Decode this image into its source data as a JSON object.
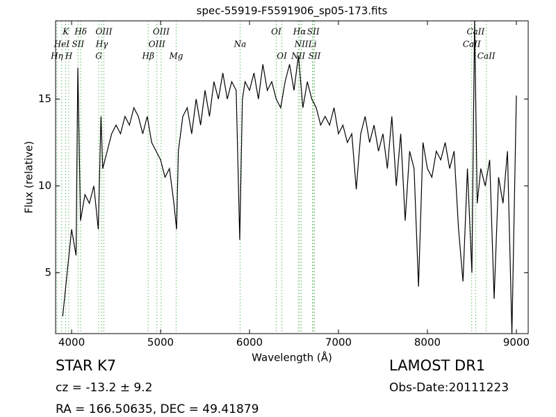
{
  "chart_data": {
    "type": "line",
    "title": "spec-55919-F5591906_sp05-173.fits",
    "x_label": "Wavelength (Å)",
    "y_label": "Flux (relative)",
    "xlim": [
      3820,
      9133
    ],
    "ylim": [
      1.5,
      19.5
    ],
    "xticks": [
      4000,
      5000,
      6000,
      7000,
      8000,
      9000
    ],
    "yticks": [
      5,
      10,
      15
    ],
    "series": [
      {
        "color": "#000000",
        "x": [
          3900,
          3950,
          4000,
          4050,
          4070,
          4100,
          4150,
          4200,
          4250,
          4300,
          4330,
          4350,
          4400,
          4450,
          4500,
          4550,
          4600,
          4650,
          4700,
          4750,
          4800,
          4850,
          4900,
          4950,
          5000,
          5050,
          5100,
          5150,
          5180,
          5200,
          5250,
          5300,
          5350,
          5400,
          5450,
          5500,
          5550,
          5600,
          5650,
          5700,
          5750,
          5800,
          5850,
          5890,
          5920,
          5950,
          6000,
          6050,
          6100,
          6150,
          6200,
          6250,
          6300,
          6350,
          6400,
          6450,
          6500,
          6550,
          6600,
          6650,
          6700,
          6750,
          6800,
          6850,
          6900,
          6950,
          7000,
          7050,
          7100,
          7150,
          7200,
          7250,
          7300,
          7350,
          7400,
          7450,
          7500,
          7550,
          7600,
          7650,
          7700,
          7750,
          7800,
          7850,
          7900,
          7950,
          8000,
          8050,
          8100,
          8150,
          8200,
          8250,
          8300,
          8350,
          8400,
          8450,
          8500,
          8530,
          8560,
          8600,
          8650,
          8700,
          8750,
          8800,
          8850,
          8900,
          8950,
          9000
        ],
        "values": [
          2.5,
          5,
          7.5,
          6,
          16.8,
          8,
          9.5,
          9,
          10,
          7.5,
          14,
          11,
          12,
          13,
          13.5,
          13,
          14,
          13.5,
          14.5,
          14,
          13,
          14,
          12.5,
          12,
          11.5,
          10.5,
          11,
          9,
          7.5,
          12,
          14,
          14.5,
          13,
          15,
          13.5,
          15.5,
          14,
          16,
          15,
          16.5,
          15,
          16,
          15.5,
          6.9,
          15,
          16,
          15.5,
          16.5,
          15,
          17,
          15.5,
          16,
          15,
          14.5,
          16,
          17,
          15.5,
          17.5,
          14.5,
          16,
          15,
          14.5,
          13.5,
          14,
          13.5,
          14.5,
          13,
          13.5,
          12.5,
          13,
          9.8,
          13,
          14,
          12.5,
          13.5,
          12,
          13,
          11,
          14,
          10,
          13,
          8,
          12,
          11,
          4.2,
          12.5,
          11,
          10.5,
          12,
          11.5,
          12.5,
          11,
          12,
          7.5,
          4.5,
          11,
          5,
          19.5,
          9,
          11,
          10,
          11.5,
          3.5,
          10.5,
          9,
          12,
          1.5,
          15.2
        ]
      }
    ],
    "lines": {
      "color": "#5cb85c",
      "labels": [
        "Hη",
        "HeI",
        "K",
        "H",
        "SII",
        "Hδ",
        "G",
        "Hγ",
        "OIII",
        "Hβ",
        "OIII",
        "OIII",
        "Mg",
        "Na",
        "OI",
        "OI",
        "NII",
        "Hα",
        "NII",
        "Li",
        "SII",
        "SII",
        "CaII",
        "CaII",
        "CaII"
      ],
      "x": [
        3835,
        3889,
        3934,
        3968,
        4072,
        4102,
        4305,
        4340,
        4363,
        4861,
        4959,
        5007,
        5175,
        5894,
        6300,
        6364,
        6548,
        6563,
        6583,
        6708,
        6717,
        6731,
        8498,
        8542,
        8662
      ]
    },
    "info": {
      "class": "STAR",
      "subclass": "K7",
      "cz": "cz = -13.2 ± 9.2",
      "coords": "RA = 166.50635, DEC = 49.41879",
      "survey": "LAMOST DR1",
      "date": "Obs-Date:20111223"
    }
  }
}
